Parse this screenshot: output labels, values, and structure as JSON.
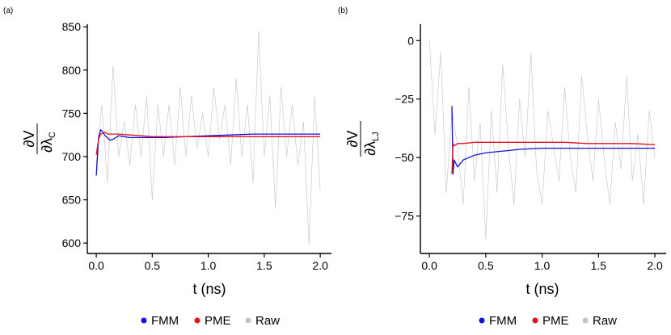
{
  "legend": [
    {
      "name": "FMM",
      "color": "#1010d8"
    },
    {
      "name": "PME",
      "color": "#e8101a"
    },
    {
      "name": "Raw",
      "color": "#c4c4c4"
    }
  ],
  "chart_data": [
    {
      "type": "line",
      "panel_label": "(a)",
      "xlabel": "t (ns)",
      "ylabel": "∂V / ∂λ_C",
      "ylabel_num": "∂V",
      "ylabel_den": "∂λ",
      "ylabel_sub": "C",
      "xlim": [
        -0.08,
        2.1
      ],
      "ylim": [
        588,
        853
      ],
      "xticks": [
        0.0,
        0.5,
        1.0,
        1.5,
        2.0
      ],
      "xtick_labels": [
        "0.0",
        "0.5",
        "1.0",
        "1.5",
        "2.0"
      ],
      "yticks": [
        600,
        650,
        700,
        750,
        800,
        850
      ],
      "ytick_labels": [
        "600",
        "650",
        "700",
        "750",
        "800",
        "850"
      ],
      "grid": false,
      "legend_position": "bottom",
      "series": [
        {
          "name": "Raw",
          "color": "#c4c4c4",
          "x": [
            0.0,
            0.05,
            0.1,
            0.15,
            0.2,
            0.25,
            0.3,
            0.35,
            0.4,
            0.45,
            0.5,
            0.55,
            0.6,
            0.65,
            0.7,
            0.75,
            0.8,
            0.85,
            0.9,
            0.95,
            1.0,
            1.05,
            1.1,
            1.15,
            1.2,
            1.25,
            1.3,
            1.35,
            1.4,
            1.45,
            1.5,
            1.55,
            1.6,
            1.65,
            1.7,
            1.75,
            1.8,
            1.85,
            1.9,
            1.95,
            2.0
          ],
          "y": [
            690,
            760,
            670,
            805,
            700,
            740,
            690,
            760,
            700,
            770,
            650,
            760,
            700,
            760,
            690,
            780,
            700,
            770,
            710,
            750,
            700,
            780,
            720,
            760,
            690,
            790,
            700,
            760,
            670,
            845,
            700,
            770,
            640,
            780,
            700,
            760,
            690,
            740,
            598,
            770,
            660
          ]
        },
        {
          "name": "FMM",
          "color": "#1010d8",
          "x": [
            0.0,
            0.02,
            0.04,
            0.06,
            0.08,
            0.1,
            0.12,
            0.15,
            0.2,
            0.3,
            0.4,
            0.5,
            0.6,
            0.8,
            1.0,
            1.2,
            1.4,
            1.6,
            1.8,
            2.0
          ],
          "y": [
            678,
            722,
            731,
            728,
            724,
            722,
            719,
            720,
            724,
            722,
            722,
            722,
            722,
            723,
            724,
            725,
            726,
            726,
            726,
            726
          ]
        },
        {
          "name": "PME",
          "color": "#e8101a",
          "x": [
            0.0,
            0.02,
            0.04,
            0.06,
            0.08,
            0.1,
            0.15,
            0.2,
            0.3,
            0.4,
            0.5,
            0.6,
            0.8,
            1.0,
            1.2,
            1.4,
            1.6,
            1.8,
            2.0
          ],
          "y": [
            702,
            720,
            726,
            727,
            728,
            726,
            726,
            726,
            725,
            724,
            723,
            723,
            723,
            723,
            723,
            723,
            723,
            723,
            723
          ]
        }
      ]
    },
    {
      "type": "line",
      "panel_label": "(b)",
      "xlabel": "t (ns)",
      "ylabel": "∂V / ∂λ_LJ",
      "ylabel_num": "∂V",
      "ylabel_den": "∂λ",
      "ylabel_sub": "LJ",
      "xlim": [
        -0.08,
        2.1
      ],
      "ylim": [
        -91,
        7
      ],
      "xticks": [
        0.0,
        0.5,
        1.0,
        1.5,
        2.0
      ],
      "xtick_labels": [
        "0.0",
        "0.5",
        "1.0",
        "1.5",
        "2.0"
      ],
      "yticks": [
        -75,
        -50,
        -25,
        0
      ],
      "ytick_labels": [
        "−75",
        "−50",
        "−25",
        "0"
      ],
      "grid": false,
      "legend_position": "bottom",
      "series": [
        {
          "name": "Raw",
          "color": "#c4c4c4",
          "x": [
            0.0,
            0.05,
            0.1,
            0.15,
            0.2,
            0.25,
            0.3,
            0.35,
            0.4,
            0.45,
            0.5,
            0.55,
            0.6,
            0.65,
            0.7,
            0.75,
            0.8,
            0.85,
            0.9,
            0.95,
            1.0,
            1.05,
            1.1,
            1.15,
            1.2,
            1.25,
            1.3,
            1.35,
            1.4,
            1.45,
            1.5,
            1.55,
            1.6,
            1.65,
            1.7,
            1.75,
            1.8,
            1.85,
            1.9,
            1.95,
            2.0
          ],
          "y": [
            0,
            -40,
            -5,
            -65,
            -30,
            -45,
            -70,
            -20,
            -60,
            -35,
            -85,
            -30,
            -65,
            -10,
            -45,
            -70,
            -25,
            -50,
            -5,
            -55,
            -70,
            -30,
            -45,
            -60,
            -20,
            -50,
            -65,
            -15,
            -40,
            -60,
            -25,
            -50,
            -70,
            -35,
            -55,
            -15,
            -60,
            -40,
            -70,
            -30,
            -50
          ]
        },
        {
          "name": "FMM",
          "color": "#1010d8",
          "x": [
            0.2,
            0.21,
            0.22,
            0.25,
            0.3,
            0.35,
            0.4,
            0.5,
            0.6,
            0.7,
            0.8,
            1.0,
            1.2,
            1.4,
            1.6,
            1.8,
            2.0
          ],
          "y": [
            -28,
            -57,
            -51,
            -54,
            -51,
            -50,
            -49,
            -48,
            -47.5,
            -47,
            -46.5,
            -46,
            -46,
            -46,
            -46,
            -46,
            -46
          ]
        },
        {
          "name": "PME",
          "color": "#e8101a",
          "x": [
            0.2,
            0.21,
            0.22,
            0.25,
            0.3,
            0.4,
            0.5,
            0.6,
            0.8,
            1.0,
            1.2,
            1.4,
            1.6,
            1.8,
            2.0
          ],
          "y": [
            -57,
            -44,
            -45,
            -44,
            -44,
            -43.5,
            -43.5,
            -43.5,
            -43.5,
            -43.5,
            -43.5,
            -44,
            -44,
            -44,
            -44.5
          ]
        }
      ]
    }
  ]
}
